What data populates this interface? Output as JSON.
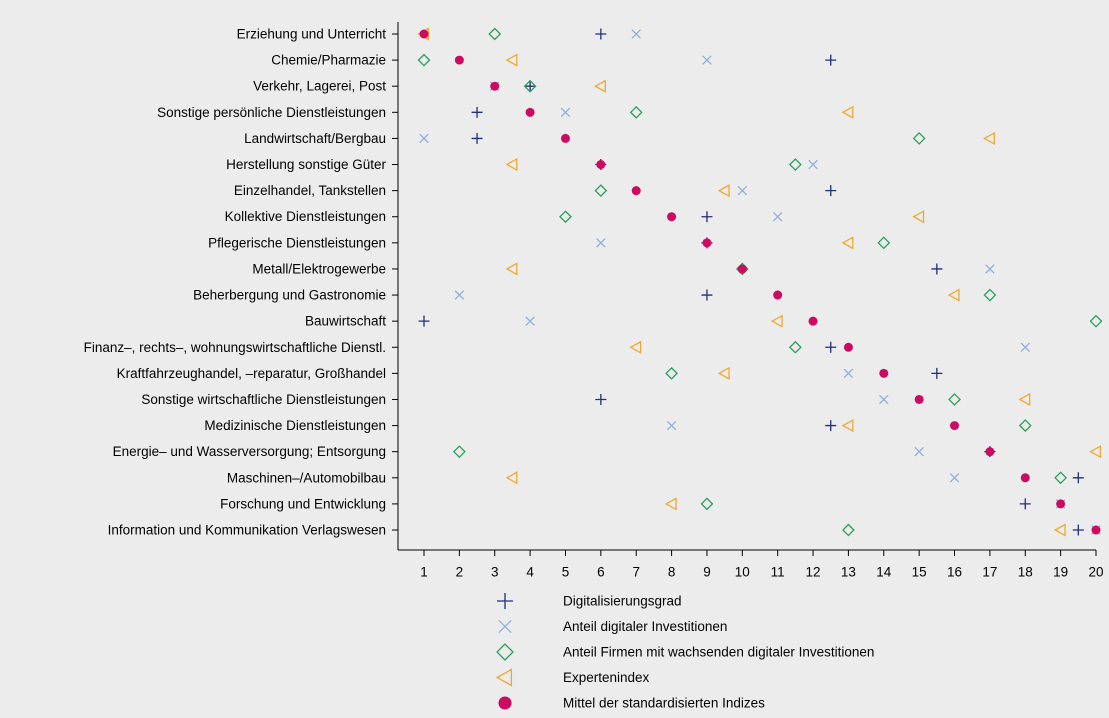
{
  "chart_data": {
    "type": "scatter",
    "title": "",
    "xlabel": "",
    "ylabel": "",
    "xlim": [
      1,
      20
    ],
    "x_ticks": [
      "1",
      "2",
      "3",
      "4",
      "5",
      "6",
      "7",
      "8",
      "9",
      "10",
      "11",
      "12",
      "13",
      "14",
      "15",
      "16",
      "17",
      "18",
      "19",
      "20"
    ],
    "grid": false,
    "legend_position": "bottom",
    "categories": [
      "Erziehung und Unterricht",
      "Chemie/Pharmazie",
      "Verkehr, Lagerei, Post",
      "Sonstige persönliche Dienstleistungen ",
      "Landwirtschaft/Bergbau",
      "Herstellung sonstige Güter",
      "Einzelhandel, Tankstellen",
      "Kollektive Dienstleistungen",
      "Pflegerische Dienstleistungen",
      "Metall/Elektrogewerbe",
      "Beherbergung und Gastronomie",
      "Bauwirtschaft",
      "Finanz–, rechts–, wohnungswirtschaftliche Dienstl.",
      "Kraftfahrzeughandel, –reparatur, Großhandel",
      "Sonstige wirtschaftliche Dienstleistungen",
      "Medizinische Dienstleistungen",
      "Energie– und Wasserversorgung; Entsorgung ",
      "Maschinen–/Automobilbau",
      "Forschung und Entwicklung",
      "Information und Kommunikation Verlagswesen"
    ],
    "series": [
      {
        "name": "Digitalisierungsgrad",
        "marker": "plus",
        "color": "#1f2f7a",
        "values": [
          6,
          12.5,
          4,
          2.5,
          2.5,
          6,
          12.5,
          9,
          9,
          15.5,
          9,
          1,
          12.5,
          15.5,
          6,
          12.5,
          17,
          19.5,
          18,
          19.5
        ]
      },
      {
        "name": "Anteil digitaler Investitionen",
        "marker": "cross",
        "color": "#8fb0de",
        "values": [
          7,
          9,
          3,
          5,
          1,
          12,
          10,
          11,
          6,
          17,
          2,
          4,
          18,
          13,
          14,
          8,
          15,
          16,
          19,
          20
        ]
      },
      {
        "name": "Anteil Firmen mit wachsenden digitaler Investitionen",
        "marker": "diamond",
        "color": "#2ca05a",
        "values": [
          3,
          1,
          4,
          7,
          15,
          11.5,
          6,
          5,
          14,
          10,
          17,
          20,
          11.5,
          8,
          16,
          18,
          2,
          19,
          9,
          13
        ]
      },
      {
        "name": "Expertenindex",
        "marker": "triangle-left",
        "color": "#f0a830",
        "values": [
          1,
          3.5,
          6,
          13,
          17,
          3.5,
          9.5,
          15,
          13,
          3.5,
          16,
          11,
          7,
          9.5,
          18,
          13,
          20,
          3.5,
          8,
          19
        ]
      },
      {
        "name": "Mittel der standardisierten Indizes",
        "marker": "circle",
        "color": "#cc0a62",
        "values": [
          1,
          2,
          3,
          4,
          5,
          6,
          7,
          8,
          9,
          10,
          11,
          12,
          13,
          14,
          15,
          16,
          17,
          18,
          19,
          20
        ]
      }
    ]
  }
}
